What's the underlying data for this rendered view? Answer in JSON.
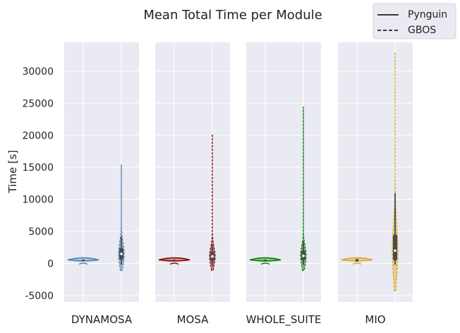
{
  "chart_data": {
    "type": "violin",
    "title": "Mean Total Time per Module",
    "ylabel": "Time [s]",
    "xlabel": "",
    "ylim": [
      -6000,
      34500
    ],
    "yticks": [
      -5000,
      0,
      5000,
      10000,
      15000,
      20000,
      25000,
      30000
    ],
    "grid": true,
    "legend": {
      "position": "top-right",
      "entries": [
        {
          "label": "Pynguin",
          "style": "solid"
        },
        {
          "label": "GBOS",
          "style": "dashed"
        }
      ]
    },
    "categories": [
      "DYNAMOSA",
      "MOSA",
      "WHOLE_SUITE",
      "MIO"
    ],
    "colors": {
      "DYNAMOSA": "#4682b4",
      "MOSA": "#8b0000",
      "WHOLE_SUITE": "#008000",
      "MIO": "#daa520",
      "box": "#4a4a4a",
      "panel": "#eaeaf2",
      "grid": "#ffffff"
    },
    "violins": [
      {
        "category": "DYNAMOSA",
        "tool": "Pynguin",
        "min": 0,
        "max": 800,
        "median": 560,
        "q1": 520,
        "q3": 600,
        "peak": 600
      },
      {
        "category": "DYNAMOSA",
        "tool": "GBOS",
        "min": -1100,
        "max": 15400,
        "median": 1500,
        "q1": 600,
        "q3": 2400,
        "whisker_low": -200,
        "whisker_high": 4200
      },
      {
        "category": "MOSA",
        "tool": "Pynguin",
        "min": 0,
        "max": 800,
        "median": 560,
        "q1": 520,
        "q3": 600,
        "peak": 600
      },
      {
        "category": "MOSA",
        "tool": "GBOS",
        "min": -1100,
        "max": 20200,
        "median": 1100,
        "q1": 400,
        "q3": 1800,
        "whisker_low": -300,
        "whisker_high": 3000
      },
      {
        "category": "WHOLE_SUITE",
        "tool": "Pynguin",
        "min": 0,
        "max": 800,
        "median": 560,
        "q1": 520,
        "q3": 600,
        "peak": 600
      },
      {
        "category": "WHOLE_SUITE",
        "tool": "GBOS",
        "min": -1100,
        "max": 24400,
        "median": 1200,
        "q1": 500,
        "q3": 2000,
        "whisker_low": -200,
        "whisker_high": 3500
      },
      {
        "category": "MIO",
        "tool": "Pynguin",
        "min": 0,
        "max": 800,
        "median": 560,
        "q1": 300,
        "q3": 700,
        "peak": 600
      },
      {
        "category": "MIO",
        "tool": "GBOS",
        "min": -4300,
        "max": 33000,
        "median": 2000,
        "q1": 500,
        "q3": 4500,
        "whisker_low": -200,
        "whisker_high": 11000
      }
    ]
  }
}
